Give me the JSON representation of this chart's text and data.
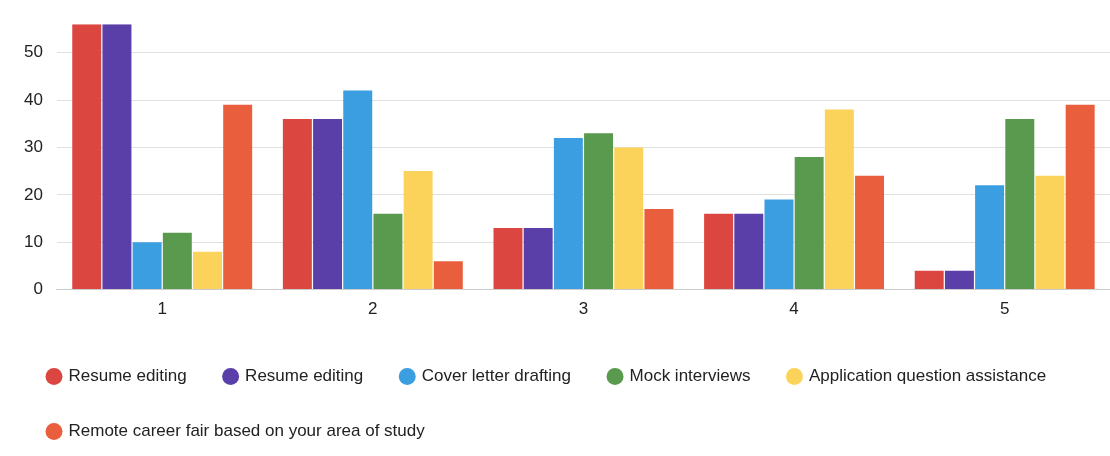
{
  "chart_data": {
    "type": "bar",
    "categories": [
      "1",
      "2",
      "3",
      "4",
      "5"
    ],
    "series": [
      {
        "name": "Resume editing",
        "color": "#db4740",
        "values": [
          56,
          36,
          13,
          16,
          4
        ]
      },
      {
        "name": "Resume editing",
        "color": "#5a3fa8",
        "values": [
          56,
          36,
          13,
          16,
          4
        ]
      },
      {
        "name": "Cover letter drafting",
        "color": "#3b9ee0",
        "values": [
          10,
          42,
          32,
          19,
          22
        ]
      },
      {
        "name": "Mock interviews",
        "color": "#5a9a4e",
        "values": [
          12,
          16,
          33,
          28,
          36
        ]
      },
      {
        "name": "Application question assistance",
        "color": "#fcd35a",
        "values": [
          8,
          25,
          30,
          38,
          24
        ]
      },
      {
        "name": "Remote career fair based on your area of study",
        "color": "#e95e3c",
        "values": [
          39,
          6,
          17,
          24,
          39
        ]
      }
    ],
    "ylim": [
      0,
      56
    ],
    "yticks": [
      0,
      10,
      20,
      30,
      40,
      50
    ],
    "grid": "y",
    "legend": "bottom",
    "marker": "circle"
  }
}
